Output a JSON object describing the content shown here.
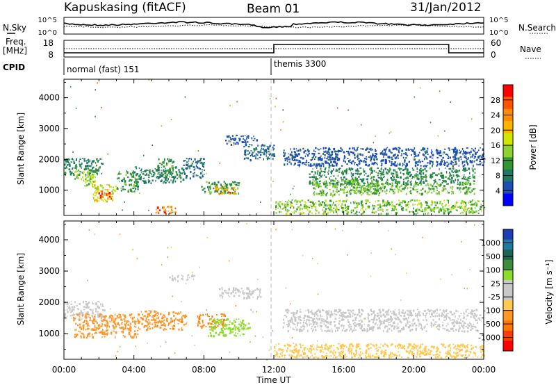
{
  "header": {
    "station": "Kapuskasing (fitACF)",
    "beam": "Beam 01",
    "date": "31/Jan/2012"
  },
  "noise_panel": {
    "left_label": "N.Sky",
    "right_label": "N.Search",
    "left_ticks": [
      "10^5",
      "10^0"
    ],
    "right_ticks": [
      "10^5",
      "10^0"
    ]
  },
  "freq_panel": {
    "left_label_1": "Freq.",
    "left_label_2": "[MHz]",
    "right_label": "Nave",
    "left_ticks": [
      "18",
      "8"
    ],
    "right_ticks": [
      "60",
      "0"
    ]
  },
  "cpid_panel": {
    "label": "CPID",
    "modes": [
      {
        "start_h": 0,
        "end_h": 12,
        "label": "normal (fast) 151"
      },
      {
        "start_h": 12,
        "end_h": 24,
        "label": "themis 3300"
      }
    ]
  },
  "xaxis": {
    "label": "Time UT",
    "ticks": [
      "00:00",
      "04:00",
      "08:00",
      "12:00",
      "16:00",
      "20:00",
      "00:00"
    ]
  },
  "power_colorbar": {
    "label": "Power [dB]",
    "ticks": [
      "28",
      "24",
      "20",
      "16",
      "12",
      "8",
      "4"
    ],
    "colors": [
      "#ff0000",
      "#ff5500",
      "#ff8c00",
      "#ffb400",
      "#d2e600",
      "#8cd232",
      "#329632",
      "#1e7864",
      "#1e50b4",
      "#0000ff"
    ]
  },
  "velocity_colorbar": {
    "label": "Velocity [m s⁻¹]",
    "ticks": [
      "1000",
      "500",
      "100",
      "25",
      "-25",
      "-100",
      "-500",
      "-1000"
    ],
    "colors": [
      "#1e3cb4",
      "#1e78a0",
      "#1e6450",
      "#3c8c3c",
      "#8cdc28",
      "#c8c8c8",
      "#c8c8c8",
      "#ffc850",
      "#ff9628",
      "#ff7800",
      "#ff3c00",
      "#ff0000"
    ]
  },
  "chart_data": [
    {
      "type": "heatmap",
      "title": "",
      "xlabel": "Time UT",
      "ylabel": "Slant Range [km]",
      "xlim": [
        0,
        24
      ],
      "ylim": [
        180,
        4600
      ],
      "yticks": [
        1000,
        2000,
        3000,
        4000
      ],
      "colorbar": "Power [dB]",
      "regions": [
        {
          "t0": 0.0,
          "t1": 2.2,
          "r0": 1500,
          "r1": 2050,
          "v": 8
        },
        {
          "t0": 0.6,
          "t1": 1.8,
          "r0": 1150,
          "r1": 1650,
          "v": 14
        },
        {
          "t0": 1.6,
          "t1": 3.0,
          "r0": 650,
          "r1": 1200,
          "v": 16
        },
        {
          "t0": 1.9,
          "t1": 2.7,
          "r0": 700,
          "r1": 1000,
          "v": 26
        },
        {
          "t0": 3.0,
          "t1": 4.2,
          "r0": 950,
          "r1": 1650,
          "v": 10
        },
        {
          "t0": 4.1,
          "t1": 6.8,
          "r0": 1250,
          "r1": 1750,
          "v": 8
        },
        {
          "t0": 5.3,
          "t1": 6.4,
          "r0": 1450,
          "r1": 2050,
          "v": 10
        },
        {
          "t0": 6.8,
          "t1": 8.0,
          "r0": 1400,
          "r1": 2050,
          "v": 6
        },
        {
          "t0": 7.8,
          "t1": 10.0,
          "r0": 900,
          "r1": 1300,
          "v": 10
        },
        {
          "t0": 8.6,
          "t1": 9.8,
          "r0": 900,
          "r1": 1150,
          "v": 22
        },
        {
          "t0": 9.2,
          "t1": 11.0,
          "r0": 2500,
          "r1": 2800,
          "v": 5
        },
        {
          "t0": 10.2,
          "t1": 12.0,
          "r0": 2000,
          "r1": 2500,
          "v": 6
        },
        {
          "t0": 5.2,
          "t1": 6.4,
          "r0": 250,
          "r1": 500,
          "v": 24
        },
        {
          "t0": 12.0,
          "t1": 24.0,
          "r0": 250,
          "r1": 700,
          "v": 13
        },
        {
          "t0": 14.0,
          "t1": 23.5,
          "r0": 1200,
          "r1": 1750,
          "v": 9
        },
        {
          "t0": 14.2,
          "t1": 18.0,
          "r0": 850,
          "r1": 1350,
          "v": 12
        },
        {
          "t0": 16.5,
          "t1": 23.5,
          "r0": 900,
          "r1": 1250,
          "v": 12
        },
        {
          "t0": 12.5,
          "t1": 24.0,
          "r0": 1800,
          "r1": 2400,
          "v": 5
        }
      ]
    },
    {
      "type": "heatmap",
      "title": "",
      "xlabel": "Time UT",
      "ylabel": "Slant Range [km]",
      "xlim": [
        0,
        24
      ],
      "ylim": [
        180,
        4600
      ],
      "yticks": [
        1000,
        2000,
        3000,
        4000
      ],
      "colorbar": "Velocity [m s⁻¹]",
      "regions": [
        {
          "t0": 0.0,
          "t1": 2.3,
          "r0": 1500,
          "r1": 2050,
          "v": 0
        },
        {
          "t0": 0.5,
          "t1": 2.4,
          "r0": 900,
          "r1": 1650,
          "v": -150
        },
        {
          "t0": 2.4,
          "t1": 4.3,
          "r0": 900,
          "r1": 1650,
          "v": -200
        },
        {
          "t0": 4.3,
          "t1": 7.0,
          "r0": 1150,
          "r1": 1750,
          "v": -250
        },
        {
          "t0": 7.6,
          "t1": 9.2,
          "r0": 1200,
          "r1": 1650,
          "v": -300
        },
        {
          "t0": 8.2,
          "t1": 10.6,
          "r0": 950,
          "r1": 1500,
          "v": 60
        },
        {
          "t0": 8.8,
          "t1": 11.2,
          "r0": 2150,
          "r1": 2500,
          "v": 10
        },
        {
          "t0": 6.0,
          "t1": 7.5,
          "r0": 2700,
          "r1": 2900,
          "v": 0
        },
        {
          "t0": 12.5,
          "t1": 23.8,
          "r0": 1100,
          "r1": 1800,
          "v": 5
        },
        {
          "t0": 12.0,
          "t1": 24.0,
          "r0": 250,
          "r1": 700,
          "v": -80
        }
      ]
    }
  ]
}
